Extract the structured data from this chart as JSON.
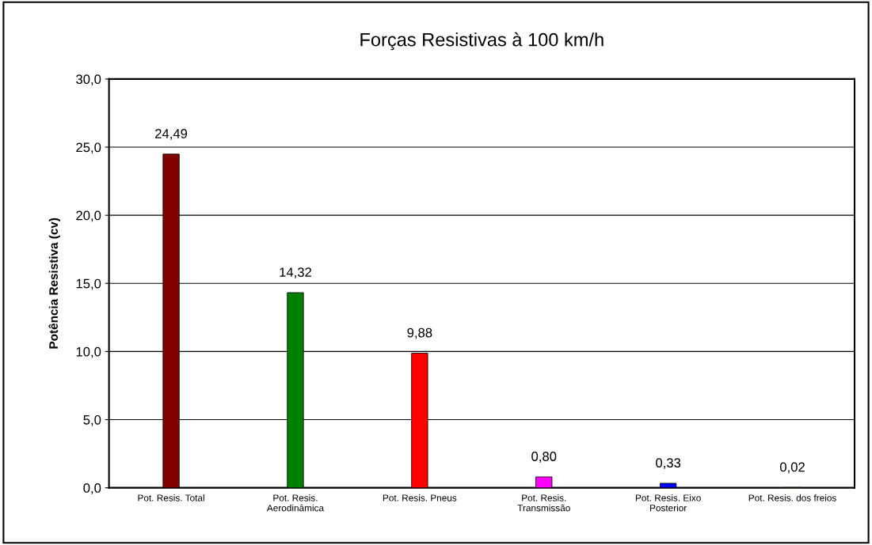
{
  "chart_data": {
    "type": "bar",
    "title": "Forças Resistivas à 100 km/h",
    "ylabel": "Potência Resistiva (cv)",
    "categories": [
      "Pot. Resis. Total",
      "Pot. Resis.\nAerodinâmica",
      "Pot. Resis. Pneus",
      "Pot. Resis.\nTransmissão",
      "Pot. Resis. Eixo\nPosterior",
      "Pot. Resis. dos freios"
    ],
    "values": [
      24.49,
      14.32,
      9.88,
      0.8,
      0.33,
      0.02
    ],
    "colors": [
      "#800000",
      "#008000",
      "#ff0000",
      "#ff00ff",
      "#0000ff",
      "#c89600"
    ],
    "value_labels": [
      "24,49",
      "14,32",
      "9,88",
      "0,80",
      "0,33",
      "0,02"
    ],
    "ylim": [
      0,
      30
    ],
    "yticks": [
      {
        "value": 0,
        "label": "0,0"
      },
      {
        "value": 5,
        "label": "5,0"
      },
      {
        "value": 10,
        "label": "10,0"
      },
      {
        "value": 15,
        "label": "15,0"
      },
      {
        "value": 20,
        "label": "20,0"
      },
      {
        "value": 25,
        "label": "25,0"
      },
      {
        "value": 30,
        "label": "30,0"
      }
    ],
    "grid": "y",
    "legend": false
  }
}
